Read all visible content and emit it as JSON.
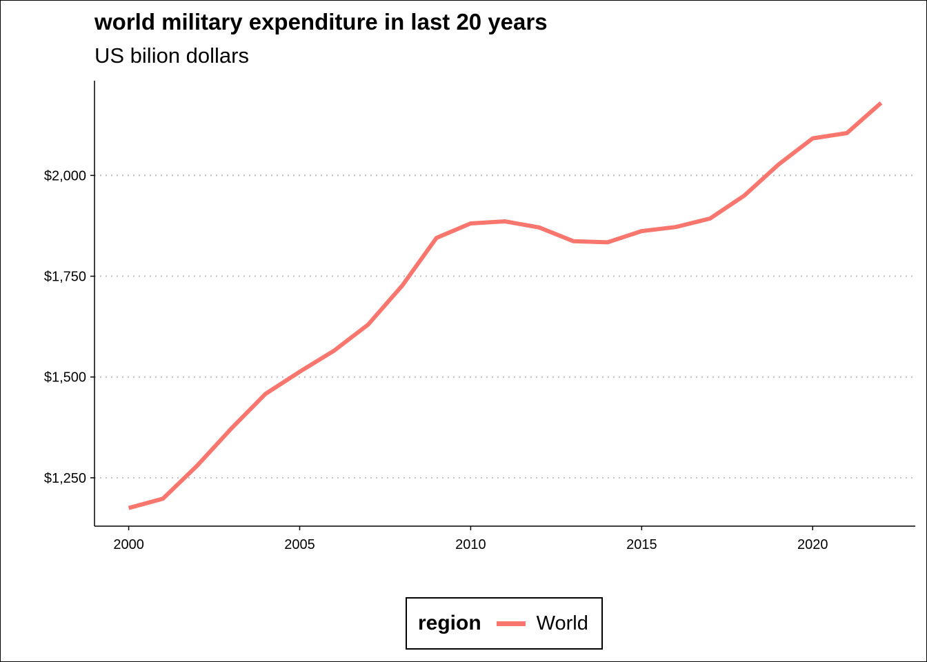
{
  "chart_data": {
    "type": "line",
    "title": "world military expenditure in last 20 years",
    "subtitle": "US bilion dollars",
    "xlabel": "",
    "ylabel": "",
    "x": [
      2000,
      2001,
      2002,
      2003,
      2004,
      2005,
      2006,
      2007,
      2008,
      2009,
      2010,
      2011,
      2012,
      2013,
      2014,
      2015,
      2016,
      2017,
      2018,
      2019,
      2020,
      2021,
      2022
    ],
    "series": [
      {
        "name": "World",
        "color": "#F8766D",
        "values": [
          1175,
          1198,
          1280,
          1372,
          1458,
          1513,
          1565,
          1630,
          1727,
          1845,
          1881,
          1886,
          1871,
          1837,
          1834,
          1862,
          1872,
          1893,
          1950,
          2027,
          2092,
          2105,
          2180
        ]
      }
    ],
    "xlim": [
      1999,
      2023
    ],
    "ylim": [
      1130,
      2235
    ],
    "x_ticks": [
      2000,
      2005,
      2010,
      2015,
      2020
    ],
    "x_tick_labels": [
      "2000",
      "2005",
      "2010",
      "2015",
      "2020"
    ],
    "y_ticks": [
      1250,
      1500,
      1750,
      2000
    ],
    "y_tick_labels": [
      "$1,250",
      "$1,500",
      "$1,750",
      "$2,000"
    ],
    "grid": "horizontal major, dotted",
    "legend": {
      "position": "bottom",
      "title": "region",
      "entries": [
        "World"
      ]
    }
  }
}
